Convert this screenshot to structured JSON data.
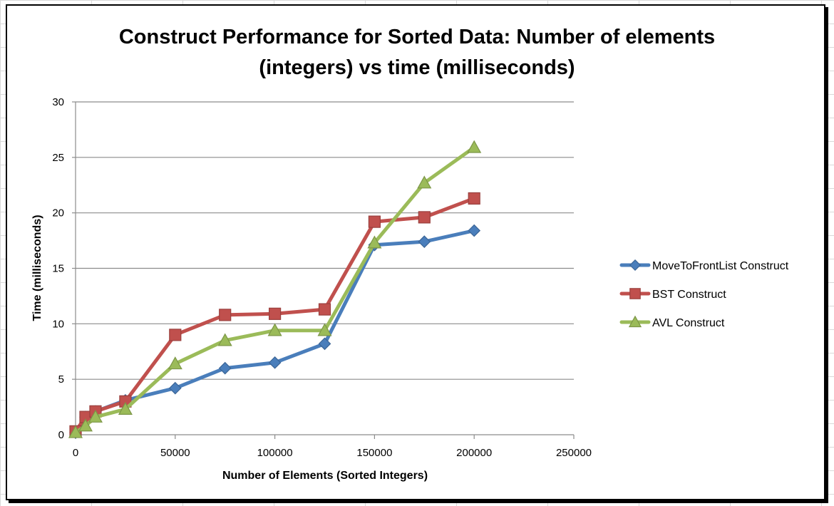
{
  "chart_data": {
    "type": "line",
    "title_lines": [
      "Construct Performance for Sorted Data: Number of elements",
      "(integers) vs time (milliseconds)"
    ],
    "xlabel": "Number of Elements (Sorted Integers)",
    "ylabel": "Time (milliseconds)",
    "xlim": [
      0,
      250000
    ],
    "ylim": [
      0,
      30
    ],
    "x_ticks": [
      0,
      50000,
      100000,
      150000,
      200000,
      250000
    ],
    "y_ticks": [
      0,
      5,
      10,
      15,
      20,
      25,
      30
    ],
    "grid": "horizontal",
    "legend_position": "right",
    "x": [
      0,
      5000,
      10000,
      25000,
      50000,
      75000,
      100000,
      125000,
      150000,
      175000,
      200000
    ],
    "series": [
      {
        "name": "MoveToFrontList Construct",
        "color": "#4a7ebb",
        "marker": "diamond",
        "values": [
          0.2,
          1.6,
          2.1,
          3.1,
          4.2,
          6.0,
          6.5,
          8.2,
          17.1,
          17.4,
          18.4
        ]
      },
      {
        "name": "BST Construct",
        "color": "#c0504d",
        "marker": "square",
        "values": [
          0.3,
          1.6,
          2.1,
          3.0,
          9.0,
          10.8,
          10.9,
          11.3,
          19.2,
          19.6,
          21.3
        ]
      },
      {
        "name": "AVL Construct",
        "color": "#9bbb59",
        "marker": "triangle",
        "values": [
          0.2,
          0.8,
          1.6,
          2.3,
          6.4,
          8.5,
          9.4,
          9.4,
          17.3,
          22.7,
          25.9
        ]
      }
    ]
  }
}
